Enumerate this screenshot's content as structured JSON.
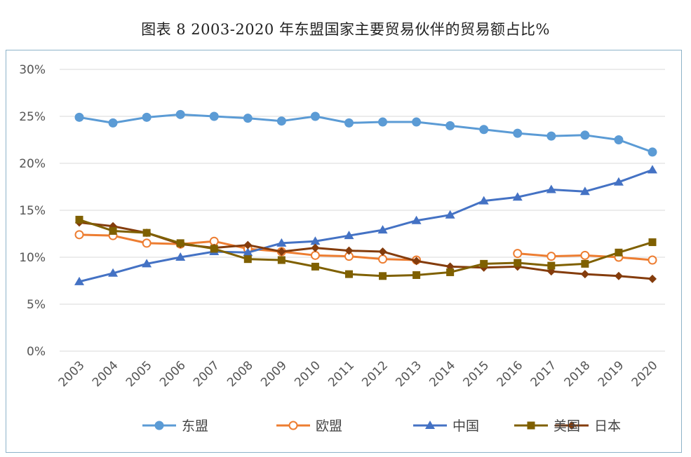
{
  "caption": "图表 8    2003-2020 年东盟国家主要贸易伙伴的贸易额占比%",
  "chart_data": {
    "type": "line",
    "title": "图表 8    2003-2020 年东盟国家主要贸易伙伴的贸易额占比%",
    "xlabel": "",
    "ylabel": "",
    "ylim": [
      0,
      30
    ],
    "yticks": [
      0,
      5,
      10,
      15,
      20,
      25,
      30
    ],
    "ytick_labels": [
      "0%",
      "5%",
      "10%",
      "15%",
      "20%",
      "25%",
      "30%"
    ],
    "grid": true,
    "legend_position": "bottom",
    "categories": [
      "2003",
      "2004",
      "2005",
      "2006",
      "2007",
      "2008",
      "2009",
      "2010",
      "2011",
      "2012",
      "2013",
      "2014",
      "2015",
      "2016",
      "2017",
      "2018",
      "2019",
      "2020"
    ],
    "series": [
      {
        "name": "东盟",
        "color": "#5b9bd5",
        "marker": "circle",
        "values": [
          24.9,
          24.3,
          24.9,
          25.2,
          25.0,
          24.8,
          24.5,
          25.0,
          24.3,
          24.4,
          24.4,
          24.0,
          23.6,
          23.2,
          22.9,
          23.0,
          22.5,
          21.2
        ]
      },
      {
        "name": "欧盟",
        "color": "#ed7d31",
        "marker": "circle-open",
        "values": [
          12.4,
          12.3,
          11.5,
          11.4,
          11.7,
          10.9,
          10.6,
          10.2,
          10.1,
          9.8,
          9.7,
          null,
          null,
          10.4,
          10.1,
          10.2,
          10.0,
          9.7
        ]
      },
      {
        "name": "中国",
        "color": "#4472c4",
        "marker": "triangle",
        "values": [
          7.4,
          8.3,
          9.3,
          10.0,
          10.6,
          10.5,
          11.5,
          11.7,
          12.3,
          12.9,
          13.9,
          14.5,
          16.0,
          16.4,
          17.2,
          17.0,
          18.0,
          19.3
        ]
      },
      {
        "name": "日本",
        "color": "#843c0c",
        "marker": "diamond",
        "values": [
          13.7,
          13.3,
          12.6,
          11.4,
          11.0,
          11.3,
          10.6,
          11.0,
          10.7,
          10.6,
          9.6,
          9.0,
          8.9,
          9.0,
          8.5,
          8.2,
          8.0,
          7.7
        ]
      },
      {
        "name": "美国",
        "color": "#7f6000",
        "marker": "square",
        "values": [
          14.0,
          12.8,
          12.6,
          11.5,
          10.9,
          9.8,
          9.7,
          9.0,
          8.2,
          8.0,
          8.1,
          8.4,
          9.3,
          9.4,
          9.1,
          9.3,
          10.5,
          11.6
        ]
      }
    ]
  }
}
